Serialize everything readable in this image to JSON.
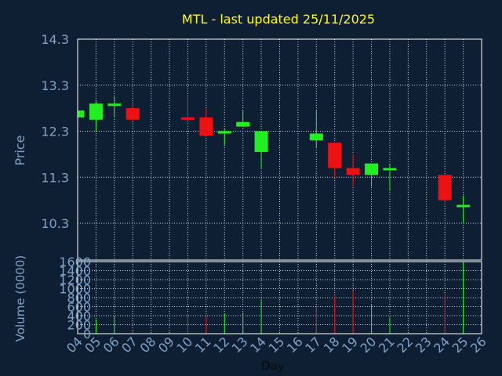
{
  "colors": {
    "background": "#0f1f33",
    "axis_text": "#7fa3c8",
    "title": "#ffff00",
    "up": "#22ee22",
    "down": "#ee1111",
    "grid": "#cfd8e3",
    "axis": "#ffffff"
  },
  "chart_data": [
    {
      "type": "candlestick",
      "title": "MTL - last updated 25/11/2025",
      "ylabel": "Price",
      "xlabel": "",
      "ylim": [
        9.5,
        14.3
      ],
      "yticks": [
        14.3,
        13.3,
        12.3,
        11.3,
        10.3
      ],
      "ytick_labels": [
        "14.3",
        "13.3",
        "12.3",
        "11.3",
        "10.3"
      ],
      "xlim": [
        4,
        26
      ],
      "grid": true,
      "candles": [
        {
          "day": 4,
          "open": 12.6,
          "high": 12.75,
          "low": 12.6,
          "close": 12.75
        },
        {
          "day": 5,
          "open": 12.55,
          "high": 12.95,
          "low": 12.3,
          "close": 12.9
        },
        {
          "day": 6,
          "open": 12.88,
          "high": 13.05,
          "low": 12.6,
          "close": 12.9
        },
        {
          "day": 7,
          "open": 12.8,
          "high": 12.9,
          "low": 12.45,
          "close": 12.55
        },
        {
          "day": 10,
          "open": 12.6,
          "high": 13.05,
          "low": 12.45,
          "close": 12.55
        },
        {
          "day": 11,
          "open": 12.6,
          "high": 12.8,
          "low": 12.2,
          "close": 12.2
        },
        {
          "day": 12,
          "open": 12.3,
          "high": 12.35,
          "low": 12.0,
          "close": 12.3
        },
        {
          "day": 13,
          "open": 12.4,
          "high": 12.75,
          "low": 12.4,
          "close": 12.5
        },
        {
          "day": 14,
          "open": 11.85,
          "high": 12.3,
          "low": 11.5,
          "close": 12.3
        },
        {
          "day": 17,
          "open": 12.1,
          "high": 12.75,
          "low": 11.95,
          "close": 12.25
        },
        {
          "day": 18,
          "open": 12.05,
          "high": 12.05,
          "low": 11.3,
          "close": 11.5
        },
        {
          "day": 19,
          "open": 11.5,
          "high": 11.8,
          "low": 11.1,
          "close": 11.35
        },
        {
          "day": 20,
          "open": 11.35,
          "high": 11.6,
          "low": 11.1,
          "close": 11.6
        },
        {
          "day": 21,
          "open": 11.45,
          "high": 11.6,
          "low": 11.0,
          "close": 11.5
        },
        {
          "day": 24,
          "open": 11.35,
          "high": 11.35,
          "low": 10.75,
          "close": 10.8
        },
        {
          "day": 25,
          "open": 10.65,
          "high": 10.9,
          "low": 10.3,
          "close": 10.7
        }
      ]
    },
    {
      "type": "bar",
      "title": "",
      "ylabel": "Volume (0000)",
      "xlabel": "Day",
      "ylim": [
        0,
        1600
      ],
      "yticks": [
        0,
        200,
        400,
        600,
        800,
        1000,
        1200,
        1400,
        1600
      ],
      "ytick_labels": [
        "0",
        "200",
        "400",
        "600",
        "800",
        "1000",
        "1200",
        "1400",
        "1600"
      ],
      "x_tick_labels": [
        "04",
        "05",
        "06",
        "07",
        "08",
        "09",
        "10",
        "11",
        "12",
        "13",
        "14",
        "15",
        "16",
        "17",
        "18",
        "19",
        "20",
        "21",
        "22",
        "23",
        "24",
        "25",
        "26"
      ],
      "grid": true,
      "bars": [
        {
          "day": 5,
          "value": 320,
          "direction": "up"
        },
        {
          "day": 6,
          "value": 390,
          "direction": "up"
        },
        {
          "day": 7,
          "value": 60,
          "direction": "down"
        },
        {
          "day": 10,
          "value": 460,
          "direction": "down"
        },
        {
          "day": 11,
          "value": 370,
          "direction": "down"
        },
        {
          "day": 12,
          "value": 450,
          "direction": "up"
        },
        {
          "day": 13,
          "value": 470,
          "direction": "up"
        },
        {
          "day": 14,
          "value": 770,
          "direction": "up"
        },
        {
          "day": 17,
          "value": 600,
          "direction": "down"
        },
        {
          "day": 18,
          "value": 830,
          "direction": "down"
        },
        {
          "day": 19,
          "value": 950,
          "direction": "down"
        },
        {
          "day": 20,
          "value": 650,
          "direction": "up"
        },
        {
          "day": 21,
          "value": 360,
          "direction": "up"
        },
        {
          "day": 24,
          "value": 900,
          "direction": "down"
        },
        {
          "day": 25,
          "value": 1600,
          "direction": "up"
        }
      ]
    }
  ]
}
